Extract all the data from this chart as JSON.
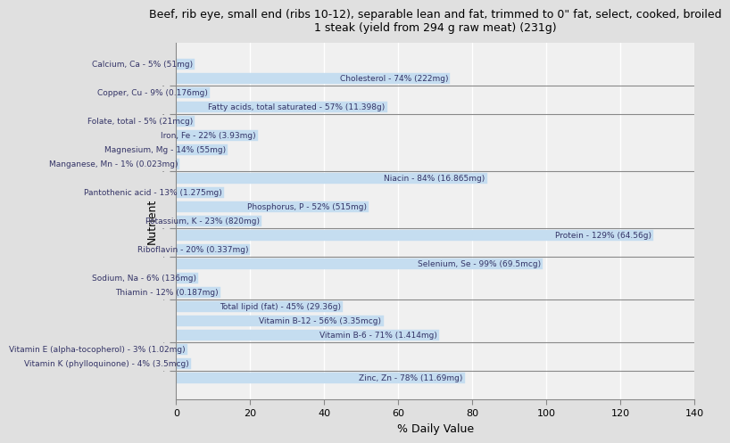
{
  "title": "Beef, rib eye, small end (ribs 10-12), separable lean and fat, trimmed to 0\" fat, select, cooked, broiled\n1 steak (yield from 294 g raw meat) (231g)",
  "xlabel": "% Daily Value",
  "ylabel": "Nutrient",
  "xlim": [
    0,
    140
  ],
  "xticks": [
    0,
    20,
    40,
    60,
    80,
    100,
    120,
    140
  ],
  "bar_color": "#c5ddf0",
  "bar_edge_color": "#c5ddf0",
  "background_color": "#e0e0e0",
  "plot_background": "#f0f0f0",
  "text_color": "#333366",
  "group_separators_after": [
    1,
    3,
    7,
    11,
    13,
    16,
    19,
    21
  ],
  "nutrients": [
    {
      "label": "Calcium, Ca - 5% (51mg)",
      "value": 5
    },
    {
      "label": "Cholesterol - 74% (222mg)",
      "value": 74
    },
    {
      "label": "Copper, Cu - 9% (0.176mg)",
      "value": 9
    },
    {
      "label": "Fatty acids, total saturated - 57% (11.398g)",
      "value": 57
    },
    {
      "label": "Folate, total - 5% (21mcg)",
      "value": 5
    },
    {
      "label": "Iron, Fe - 22% (3.93mg)",
      "value": 22
    },
    {
      "label": "Magnesium, Mg - 14% (55mg)",
      "value": 14
    },
    {
      "label": "Manganese, Mn - 1% (0.023mg)",
      "value": 1
    },
    {
      "label": "Niacin - 84% (16.865mg)",
      "value": 84
    },
    {
      "label": "Pantothenic acid - 13% (1.275mg)",
      "value": 13
    },
    {
      "label": "Phosphorus, P - 52% (515mg)",
      "value": 52
    },
    {
      "label": "Potassium, K - 23% (820mg)",
      "value": 23
    },
    {
      "label": "Protein - 129% (64.56g)",
      "value": 129
    },
    {
      "label": "Riboflavin - 20% (0.337mg)",
      "value": 20
    },
    {
      "label": "Selenium, Se - 99% (69.5mcg)",
      "value": 99
    },
    {
      "label": "Sodium, Na - 6% (136mg)",
      "value": 6
    },
    {
      "label": "Thiamin - 12% (0.187mg)",
      "value": 12
    },
    {
      "label": "Total lipid (fat) - 45% (29.36g)",
      "value": 45
    },
    {
      "label": "Vitamin B-12 - 56% (3.35mcg)",
      "value": 56
    },
    {
      "label": "Vitamin B-6 - 71% (1.414mg)",
      "value": 71
    },
    {
      "label": "Vitamin E (alpha-tocopherol) - 3% (1.02mg)",
      "value": 3
    },
    {
      "label": "Vitamin K (phylloquinone) - 4% (3.5mcg)",
      "value": 4
    },
    {
      "label": "Zinc, Zn - 78% (11.69mg)",
      "value": 78
    }
  ]
}
